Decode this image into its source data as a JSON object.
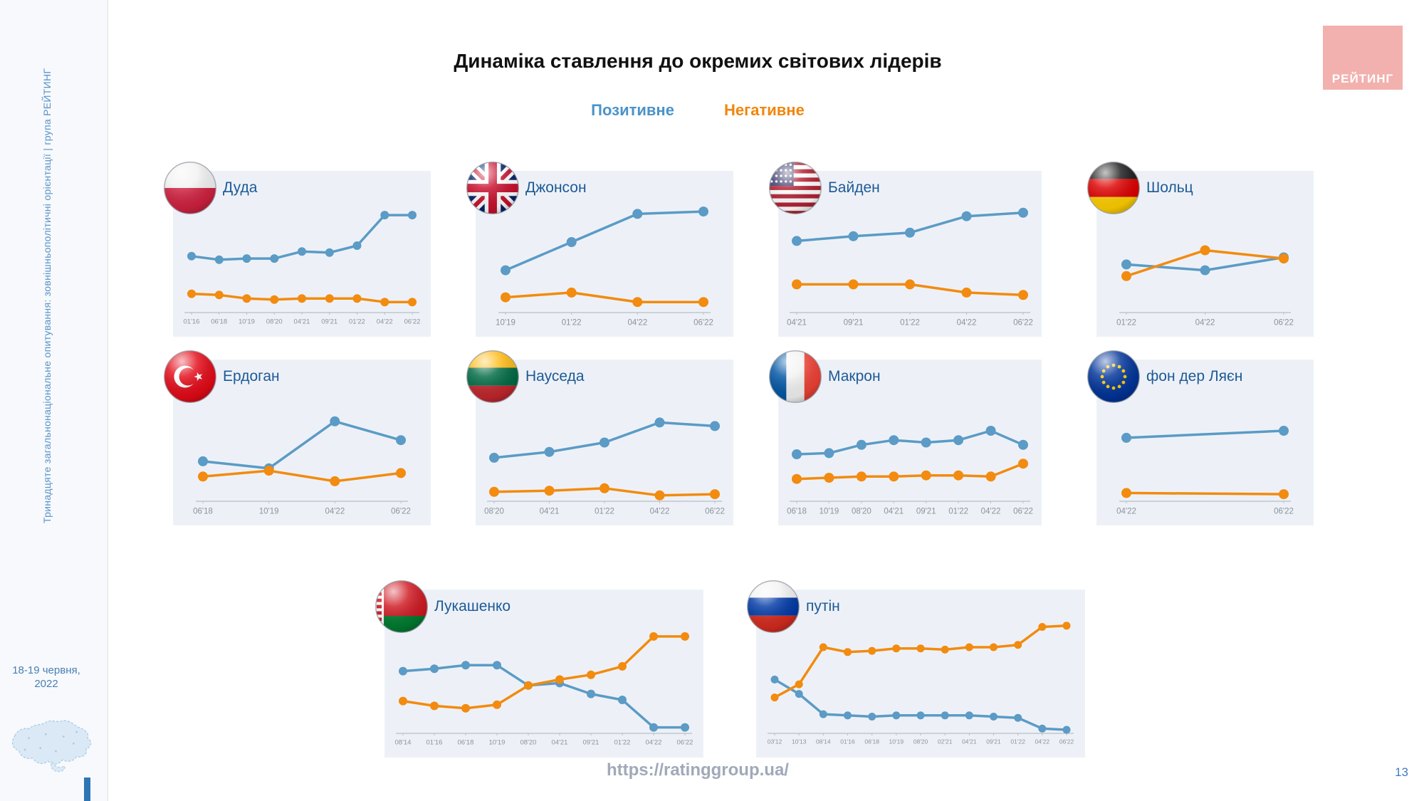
{
  "slide": {
    "title": "Динаміка ставлення до окремих світових лідерів",
    "legend": {
      "positive_label": "Позитивне",
      "negative_label": "Негативне"
    },
    "sidebar": {
      "survey_label": "Тринадцяте загальнонаціональне опитування: зовнішньополітичні орієнтації | група РЕЙТИНГ",
      "date": "18-19 червня, 2022"
    },
    "logo_text": "РЕЙТИНГ",
    "footer_url": "https://ratinggroup.ua/",
    "page_number": "13",
    "colors": {
      "positive": "#5b9bc6",
      "negative": "#f28b0f",
      "panel_background": "#edf1f7",
      "leader_name": "#1d5a96",
      "logo_background": "#f2b1ae",
      "axis_label": "#8c929b"
    }
  },
  "chart_data": [
    {
      "type": "line",
      "name": "Дуда",
      "flag": "poland",
      "ylim": [
        0,
        100
      ],
      "grid": false,
      "categories": [
        "01'16",
        "06'18",
        "10'19",
        "08'20",
        "04'21",
        "09'21",
        "01'22",
        "04'22",
        "06'22"
      ],
      "series": [
        {
          "name": "Позитивне",
          "color": "#5b9bc6",
          "values": [
            48,
            45,
            46,
            46,
            52,
            51,
            57,
            83,
            83
          ]
        },
        {
          "name": "Негативне",
          "color": "#f28b0f",
          "values": [
            16,
            15,
            12,
            11,
            12,
            12,
            12,
            9,
            9
          ]
        }
      ]
    },
    {
      "type": "line",
      "name": "Джонсон",
      "flag": "uk",
      "ylim": [
        0,
        100
      ],
      "grid": false,
      "categories": [
        "10'19",
        "01'22",
        "04'22",
        "06'22"
      ],
      "series": [
        {
          "name": "Позитивне",
          "color": "#5b9bc6",
          "values": [
            36,
            60,
            84,
            86
          ]
        },
        {
          "name": "Негативне",
          "color": "#f28b0f",
          "values": [
            13,
            17,
            9,
            9
          ]
        }
      ]
    },
    {
      "type": "line",
      "name": "Байден",
      "flag": "usa",
      "ylim": [
        0,
        100
      ],
      "grid": false,
      "categories": [
        "04'21",
        "09'21",
        "01'22",
        "04'22",
        "06'22"
      ],
      "series": [
        {
          "name": "Позитивне",
          "color": "#5b9bc6",
          "values": [
            61,
            65,
            68,
            82,
            85
          ]
        },
        {
          "name": "Негативне",
          "color": "#f28b0f",
          "values": [
            24,
            24,
            24,
            17,
            15
          ]
        }
      ]
    },
    {
      "type": "line",
      "name": "Шольц",
      "flag": "germany",
      "ylim": [
        0,
        100
      ],
      "grid": false,
      "categories": [
        "01'22",
        "04'22",
        "06'22"
      ],
      "series": [
        {
          "name": "Позитивне",
          "color": "#5b9bc6",
          "values": [
            41,
            36,
            47
          ]
        },
        {
          "name": "Негативне",
          "color": "#f28b0f",
          "values": [
            31,
            53,
            46
          ]
        }
      ]
    },
    {
      "type": "line",
      "name": "Ердоган",
      "flag": "turkey",
      "ylim": [
        0,
        100
      ],
      "grid": false,
      "categories": [
        "06'18",
        "10'19",
        "04'22",
        "06'22"
      ],
      "series": [
        {
          "name": "Позитивне",
          "color": "#5b9bc6",
          "values": [
            34,
            28,
            68,
            52
          ]
        },
        {
          "name": "Негативне",
          "color": "#f28b0f",
          "values": [
            21,
            26,
            17,
            24
          ]
        }
      ]
    },
    {
      "type": "line",
      "name": "Науседа",
      "flag": "lithuania",
      "ylim": [
        0,
        100
      ],
      "grid": false,
      "categories": [
        "08'20",
        "04'21",
        "01'22",
        "04'22",
        "06'22"
      ],
      "series": [
        {
          "name": "Позитивне",
          "color": "#5b9bc6",
          "values": [
            37,
            42,
            50,
            67,
            64
          ]
        },
        {
          "name": "Негативне",
          "color": "#f28b0f",
          "values": [
            8,
            9,
            11,
            5,
            6
          ]
        }
      ]
    },
    {
      "type": "line",
      "name": "Макрон",
      "flag": "france",
      "ylim": [
        0,
        100
      ],
      "grid": false,
      "categories": [
        "06'18",
        "10'19",
        "08'20",
        "04'21",
        "09'21",
        "01'22",
        "04'22",
        "06'22"
      ],
      "series": [
        {
          "name": "Позитивне",
          "color": "#5b9bc6",
          "values": [
            40,
            41,
            48,
            52,
            50,
            52,
            60,
            48
          ]
        },
        {
          "name": "Негативне",
          "color": "#f28b0f",
          "values": [
            19,
            20,
            21,
            21,
            22,
            22,
            21,
            32
          ]
        }
      ]
    },
    {
      "type": "line",
      "name": "фон дер Ляєн",
      "flag": "eu",
      "ylim": [
        0,
        100
      ],
      "grid": false,
      "categories": [
        "04'22",
        "06'22"
      ],
      "series": [
        {
          "name": "Позитивне",
          "color": "#5b9bc6",
          "values": [
            54,
            60
          ]
        },
        {
          "name": "Негативне",
          "color": "#f28b0f",
          "values": [
            7,
            6
          ]
        }
      ]
    },
    {
      "type": "line",
      "name": "Лукашенко",
      "flag": "belarus",
      "ylim": [
        0,
        100
      ],
      "grid": false,
      "categories": [
        "08'14",
        "01'16",
        "06'18",
        "10'19",
        "08'20",
        "04'21",
        "09'21",
        "01'22",
        "04'22",
        "06'22"
      ],
      "series": [
        {
          "name": "Позитивне",
          "color": "#5b9bc6",
          "values": [
            52,
            54,
            57,
            57,
            40,
            42,
            33,
            28,
            5,
            5
          ]
        },
        {
          "name": "Негативне",
          "color": "#f28b0f",
          "values": [
            27,
            23,
            21,
            24,
            40,
            45,
            49,
            56,
            81,
            81
          ]
        }
      ]
    },
    {
      "type": "line",
      "name": "путін",
      "flag": "russia",
      "ylim": [
        0,
        100
      ],
      "grid": false,
      "categories": [
        "03'12",
        "10'13",
        "08'14",
        "01'16",
        "06'18",
        "10'19",
        "08'20",
        "02'21",
        "04'21",
        "09'21",
        "01'22",
        "04'22",
        "06'22"
      ],
      "series": [
        {
          "name": "Позитивне",
          "color": "#5b9bc6",
          "values": [
            45,
            33,
            16,
            15,
            14,
            15,
            15,
            15,
            15,
            14,
            13,
            4,
            3
          ]
        },
        {
          "name": "Негативне",
          "color": "#f28b0f",
          "values": [
            30,
            41,
            72,
            68,
            69,
            71,
            71,
            70,
            72,
            72,
            74,
            89,
            90
          ]
        }
      ]
    }
  ]
}
